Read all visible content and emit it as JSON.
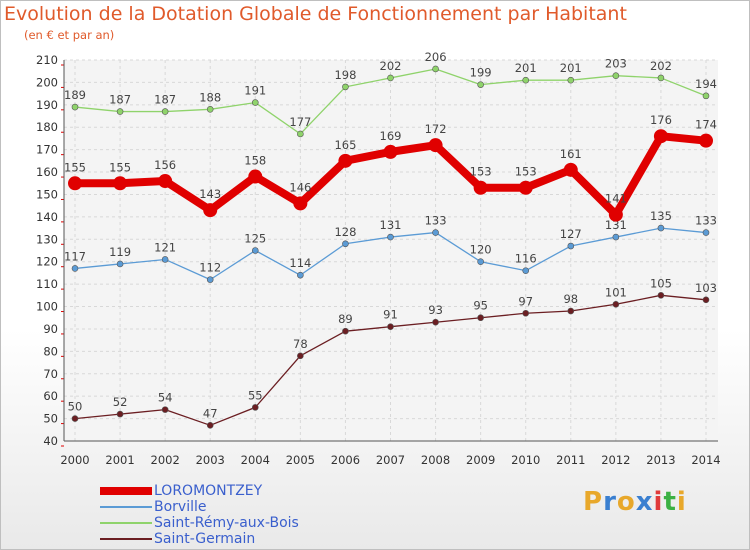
{
  "title": "Evolution de la Dotation Globale de Fonctionnement par Habitant",
  "subtitle": "(en € et par an)",
  "brand": {
    "letters": [
      "P",
      "r",
      "o",
      "x",
      "i",
      "t",
      "i"
    ],
    "colors": [
      "#e8a82b",
      "#3a7fd0",
      "#e8a82b",
      "#3a7fd0",
      "#e03a3a",
      "#3cb043",
      "#e8a82b"
    ]
  },
  "chart_data": {
    "type": "line",
    "title": "Evolution de la Dotation Globale de Fonctionnement par Habitant",
    "ylabel": "(en € et par an)",
    "xlabel": "",
    "ylim": [
      40,
      210
    ],
    "yticks": [
      40,
      50,
      60,
      70,
      80,
      90,
      100,
      110,
      120,
      130,
      140,
      150,
      160,
      170,
      180,
      190,
      200,
      210
    ],
    "categories": [
      "2000",
      "2001",
      "2002",
      "2003",
      "2004",
      "2005",
      "2006",
      "2007",
      "2008",
      "2009",
      "2010",
      "2011",
      "2012",
      "2013",
      "2014"
    ],
    "grid": true,
    "legend": "bottom-left",
    "series": [
      {
        "name": "LOROMONTZEY",
        "color": "#e00000",
        "width": 8,
        "marker": 7,
        "labels": [
          "155",
          "155",
          "156",
          "143",
          "158",
          "146",
          "165",
          "169",
          "172",
          "153",
          "153",
          "161",
          "141",
          "176",
          "174"
        ],
        "values": [
          155,
          155,
          156,
          143,
          158,
          146,
          165,
          169,
          172,
          153,
          153,
          161,
          141,
          176,
          174
        ]
      },
      {
        "name": "Borville",
        "color": "#5b9bd5",
        "width": 1.3,
        "marker": 3,
        "labels": [
          "117",
          "119",
          "121",
          "112",
          "125",
          "114",
          "128",
          "131",
          "133",
          "120",
          "116",
          "127",
          "131",
          "135",
          "133"
        ],
        "values": [
          117,
          119,
          121,
          112,
          125,
          114,
          128,
          131,
          133,
          120,
          116,
          127,
          131,
          135,
          133
        ]
      },
      {
        "name": "Saint-Rémy-aux-Bois",
        "color": "#8fd36b",
        "width": 1.3,
        "marker": 3,
        "labels": [
          "189",
          "187",
          "187",
          "188",
          "191",
          "177",
          "198",
          "202",
          "206",
          "199",
          "201",
          "201",
          "203",
          "202",
          "194"
        ],
        "values": [
          189,
          187,
          187,
          188,
          191,
          177,
          198,
          202,
          206,
          199,
          201,
          201,
          203,
          202,
          194
        ]
      },
      {
        "name": "Saint-Germain",
        "color": "#6b1e22",
        "width": 1.3,
        "marker": 3,
        "labels": [
          "50",
          "52",
          "54",
          "47",
          "55",
          "78",
          "89",
          "91",
          "93",
          "95",
          "97",
          "98",
          "101",
          "105",
          "103"
        ],
        "values": [
          50,
          52,
          54,
          47,
          55,
          78,
          89,
          91,
          93,
          95,
          97,
          98,
          101,
          105,
          103
        ]
      }
    ]
  }
}
